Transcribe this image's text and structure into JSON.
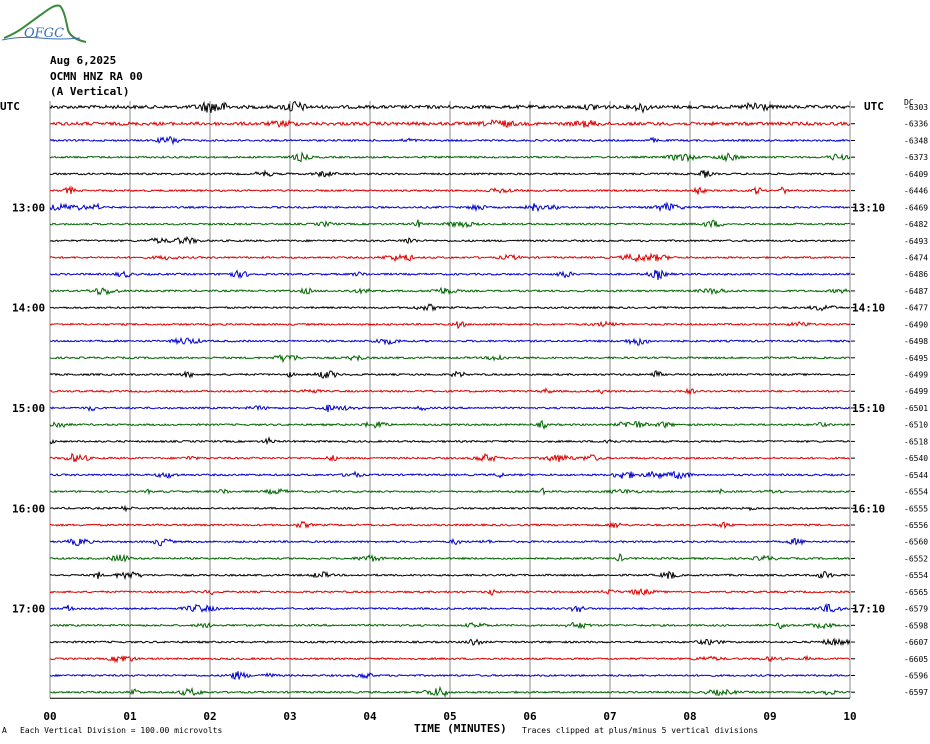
{
  "logo": {
    "text": "OFGC"
  },
  "header": {
    "date": "Aug 6,2025",
    "station": "OCMN HNZ RA 00",
    "component": "(A Vertical)"
  },
  "utc_left": "UTC",
  "utc_right": "UTC",
  "dc_label": "DC",
  "footer": {
    "scale_note": "Each Vertical Division =  100.00 microvolts",
    "xtitle": "TIME (MINUTES)",
    "clip_note": "Traces clipped at plus/minus 5 vertical divisions",
    "corner_mark": "A"
  },
  "colors": {
    "black": "#000000",
    "red": "#dd0000",
    "blue": "#0000cc",
    "green": "#006600",
    "grid": "#888888"
  },
  "chart_data": {
    "type": "line",
    "title": "",
    "xlabel": "TIME (MINUTES)",
    "ylabel": "",
    "xlim": [
      0,
      10
    ],
    "x_ticks": [
      "00",
      "01",
      "02",
      "03",
      "04",
      "05",
      "06",
      "07",
      "08",
      "09",
      "10"
    ],
    "grid": true,
    "trace_colors": [
      "black",
      "red",
      "blue",
      "green"
    ],
    "left_time_labels": [
      {
        "row": 6,
        "label": "13:00"
      },
      {
        "row": 12,
        "label": "14:00"
      },
      {
        "row": 18,
        "label": "15:00"
      },
      {
        "row": 24,
        "label": "16:00"
      },
      {
        "row": 30,
        "label": "17:00"
      }
    ],
    "right_time_labels": [
      {
        "row": 6,
        "label": "13:10"
      },
      {
        "row": 12,
        "label": "14:10"
      },
      {
        "row": 18,
        "label": "15:10"
      },
      {
        "row": 24,
        "label": "16:10"
      },
      {
        "row": 30,
        "label": "17:10"
      }
    ],
    "trace_offsets": [
      "-6303",
      "-6336",
      "-6348",
      "-6373",
      "-6409",
      "-6446",
      "-6469",
      "-6482",
      "-6493",
      "-6474",
      "-6486",
      "-6487",
      "-6477",
      "-6490",
      "-6498",
      "-6495",
      "-6499",
      "-6499",
      "-6501",
      "-6510",
      "-6518",
      "-6540",
      "-6544",
      "-6554",
      "-6555",
      "-6556",
      "-6560",
      "-6552",
      "-6554",
      "-6565",
      "-6579",
      "-6598",
      "-6607",
      "-6605",
      "-6596",
      "-6597"
    ]
  }
}
